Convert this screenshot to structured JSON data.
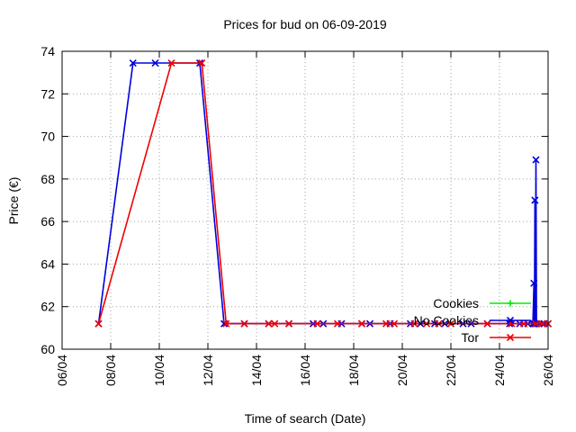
{
  "chart_data": {
    "type": "line",
    "title": "Prices for bud on 06-09-2019",
    "xlabel": "Time of search (Date)",
    "ylabel": "Price (€)",
    "xlim": [
      "06/04",
      "26/04"
    ],
    "ylim": [
      60,
      74
    ],
    "x_ticks": [
      "06/04",
      "08/04",
      "10/04",
      "12/04",
      "14/04",
      "16/04",
      "18/04",
      "20/04",
      "22/04",
      "24/04",
      "26/04"
    ],
    "y_ticks": [
      "60",
      "62",
      "64",
      "66",
      "68",
      "70",
      "72",
      "74"
    ],
    "grid": true,
    "legend_position": "bottom-right",
    "series": [
      {
        "name": "Cookies",
        "color": "#00ee00",
        "marker": "plus",
        "points": []
      },
      {
        "name": "No Cookies",
        "color": "#0000dd",
        "marker": "x",
        "points": [
          [
            "07/04 12:00",
            61.2
          ],
          [
            "08/04 22:00",
            73.45
          ],
          [
            "09/04 20:00",
            73.45
          ],
          [
            "11/04 16:00",
            73.45
          ],
          [
            "12/04 16:00",
            61.2
          ],
          [
            "13/04 12:00",
            61.2
          ],
          [
            "14/04 12:00",
            61.2
          ],
          [
            "15/04 08:00",
            61.2
          ],
          [
            "16/04 08:00",
            61.2
          ],
          [
            "16/04 18:00",
            61.2
          ],
          [
            "17/04 12:00",
            61.2
          ],
          [
            "18/04 08:00",
            61.2
          ],
          [
            "18/04 16:00",
            61.2
          ],
          [
            "19/04 12:00",
            61.2
          ],
          [
            "20/04 08:00",
            61.2
          ],
          [
            "20/04 18:00",
            61.2
          ],
          [
            "21/04 08:00",
            61.2
          ],
          [
            "21/04 18:00",
            61.2
          ],
          [
            "22/04 12:00",
            61.2
          ],
          [
            "22/04 20:00",
            61.2
          ],
          [
            "23/04 12:00",
            61.2
          ],
          [
            "24/04 10:00",
            61.2
          ],
          [
            "24/04 20:00",
            61.2
          ],
          [
            "25/04 04:00",
            61.2
          ],
          [
            "25/04 09:00",
            61.2
          ],
          [
            "25/04 10:00",
            63.1
          ],
          [
            "25/04 10:30",
            61.2
          ],
          [
            "25/04 11:00",
            67.0
          ],
          [
            "25/04 11:30",
            61.2
          ],
          [
            "25/04 12:00",
            68.9
          ],
          [
            "25/04 12:30",
            61.2
          ],
          [
            "25/04 15:00",
            61.2
          ],
          [
            "25/04 20:00",
            61.2
          ],
          [
            "26/04 00:00",
            61.2
          ]
        ]
      },
      {
        "name": "Tor",
        "color": "#ee0000",
        "marker": "x",
        "points": [
          [
            "07/04 12:00",
            61.2
          ],
          [
            "10/04 12:00",
            73.45
          ],
          [
            "11/04 18:00",
            73.45
          ],
          [
            "12/04 18:00",
            61.2
          ],
          [
            "13/04 12:00",
            61.2
          ],
          [
            "14/04 12:00",
            61.2
          ],
          [
            "14/04 18:00",
            61.2
          ],
          [
            "15/04 08:00",
            61.2
          ],
          [
            "16/04 12:00",
            61.2
          ],
          [
            "17/04 08:00",
            61.2
          ],
          [
            "18/04 08:00",
            61.2
          ],
          [
            "19/04 08:00",
            61.2
          ],
          [
            "19/04 16:00",
            61.2
          ],
          [
            "20/04 12:00",
            61.2
          ],
          [
            "21/04 00:00",
            61.2
          ],
          [
            "21/04 12:00",
            61.2
          ],
          [
            "22/04 00:00",
            61.2
          ],
          [
            "23/04 12:00",
            61.2
          ],
          [
            "24/04 12:00",
            61.2
          ],
          [
            "25/04 00:00",
            61.2
          ],
          [
            "25/04 12:00",
            61.2
          ],
          [
            "25/04 18:00",
            61.2
          ],
          [
            "26/04 00:00",
            61.2
          ]
        ]
      }
    ]
  }
}
